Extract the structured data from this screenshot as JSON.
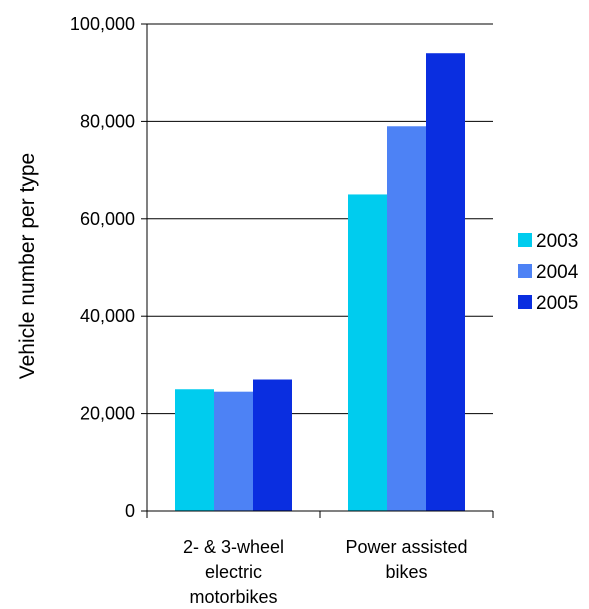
{
  "chart_data": {
    "type": "bar",
    "title": "",
    "xlabel": "",
    "ylabel": "Vehicle number per type",
    "categories": [
      [
        "2- & 3-wheel",
        "electric",
        "motorbikes"
      ],
      [
        "Power assisted",
        "bikes"
      ]
    ],
    "series": [
      {
        "name": "2003",
        "color": "#00ccee",
        "values": [
          25000,
          65000
        ]
      },
      {
        "name": "2004",
        "color": "#4d82f5",
        "values": [
          24500,
          79000
        ]
      },
      {
        "name": "2005",
        "color": "#0a2ee0",
        "values": [
          27000,
          94000
        ]
      }
    ],
    "ylim": [
      0,
      100000
    ],
    "yticks": [
      0,
      20000,
      40000,
      60000,
      80000,
      100000
    ],
    "ytick_labels": [
      "0",
      "20,000",
      "40,000",
      "60,000",
      "80,000",
      "100,000"
    ],
    "grid": true,
    "legend": "right"
  }
}
